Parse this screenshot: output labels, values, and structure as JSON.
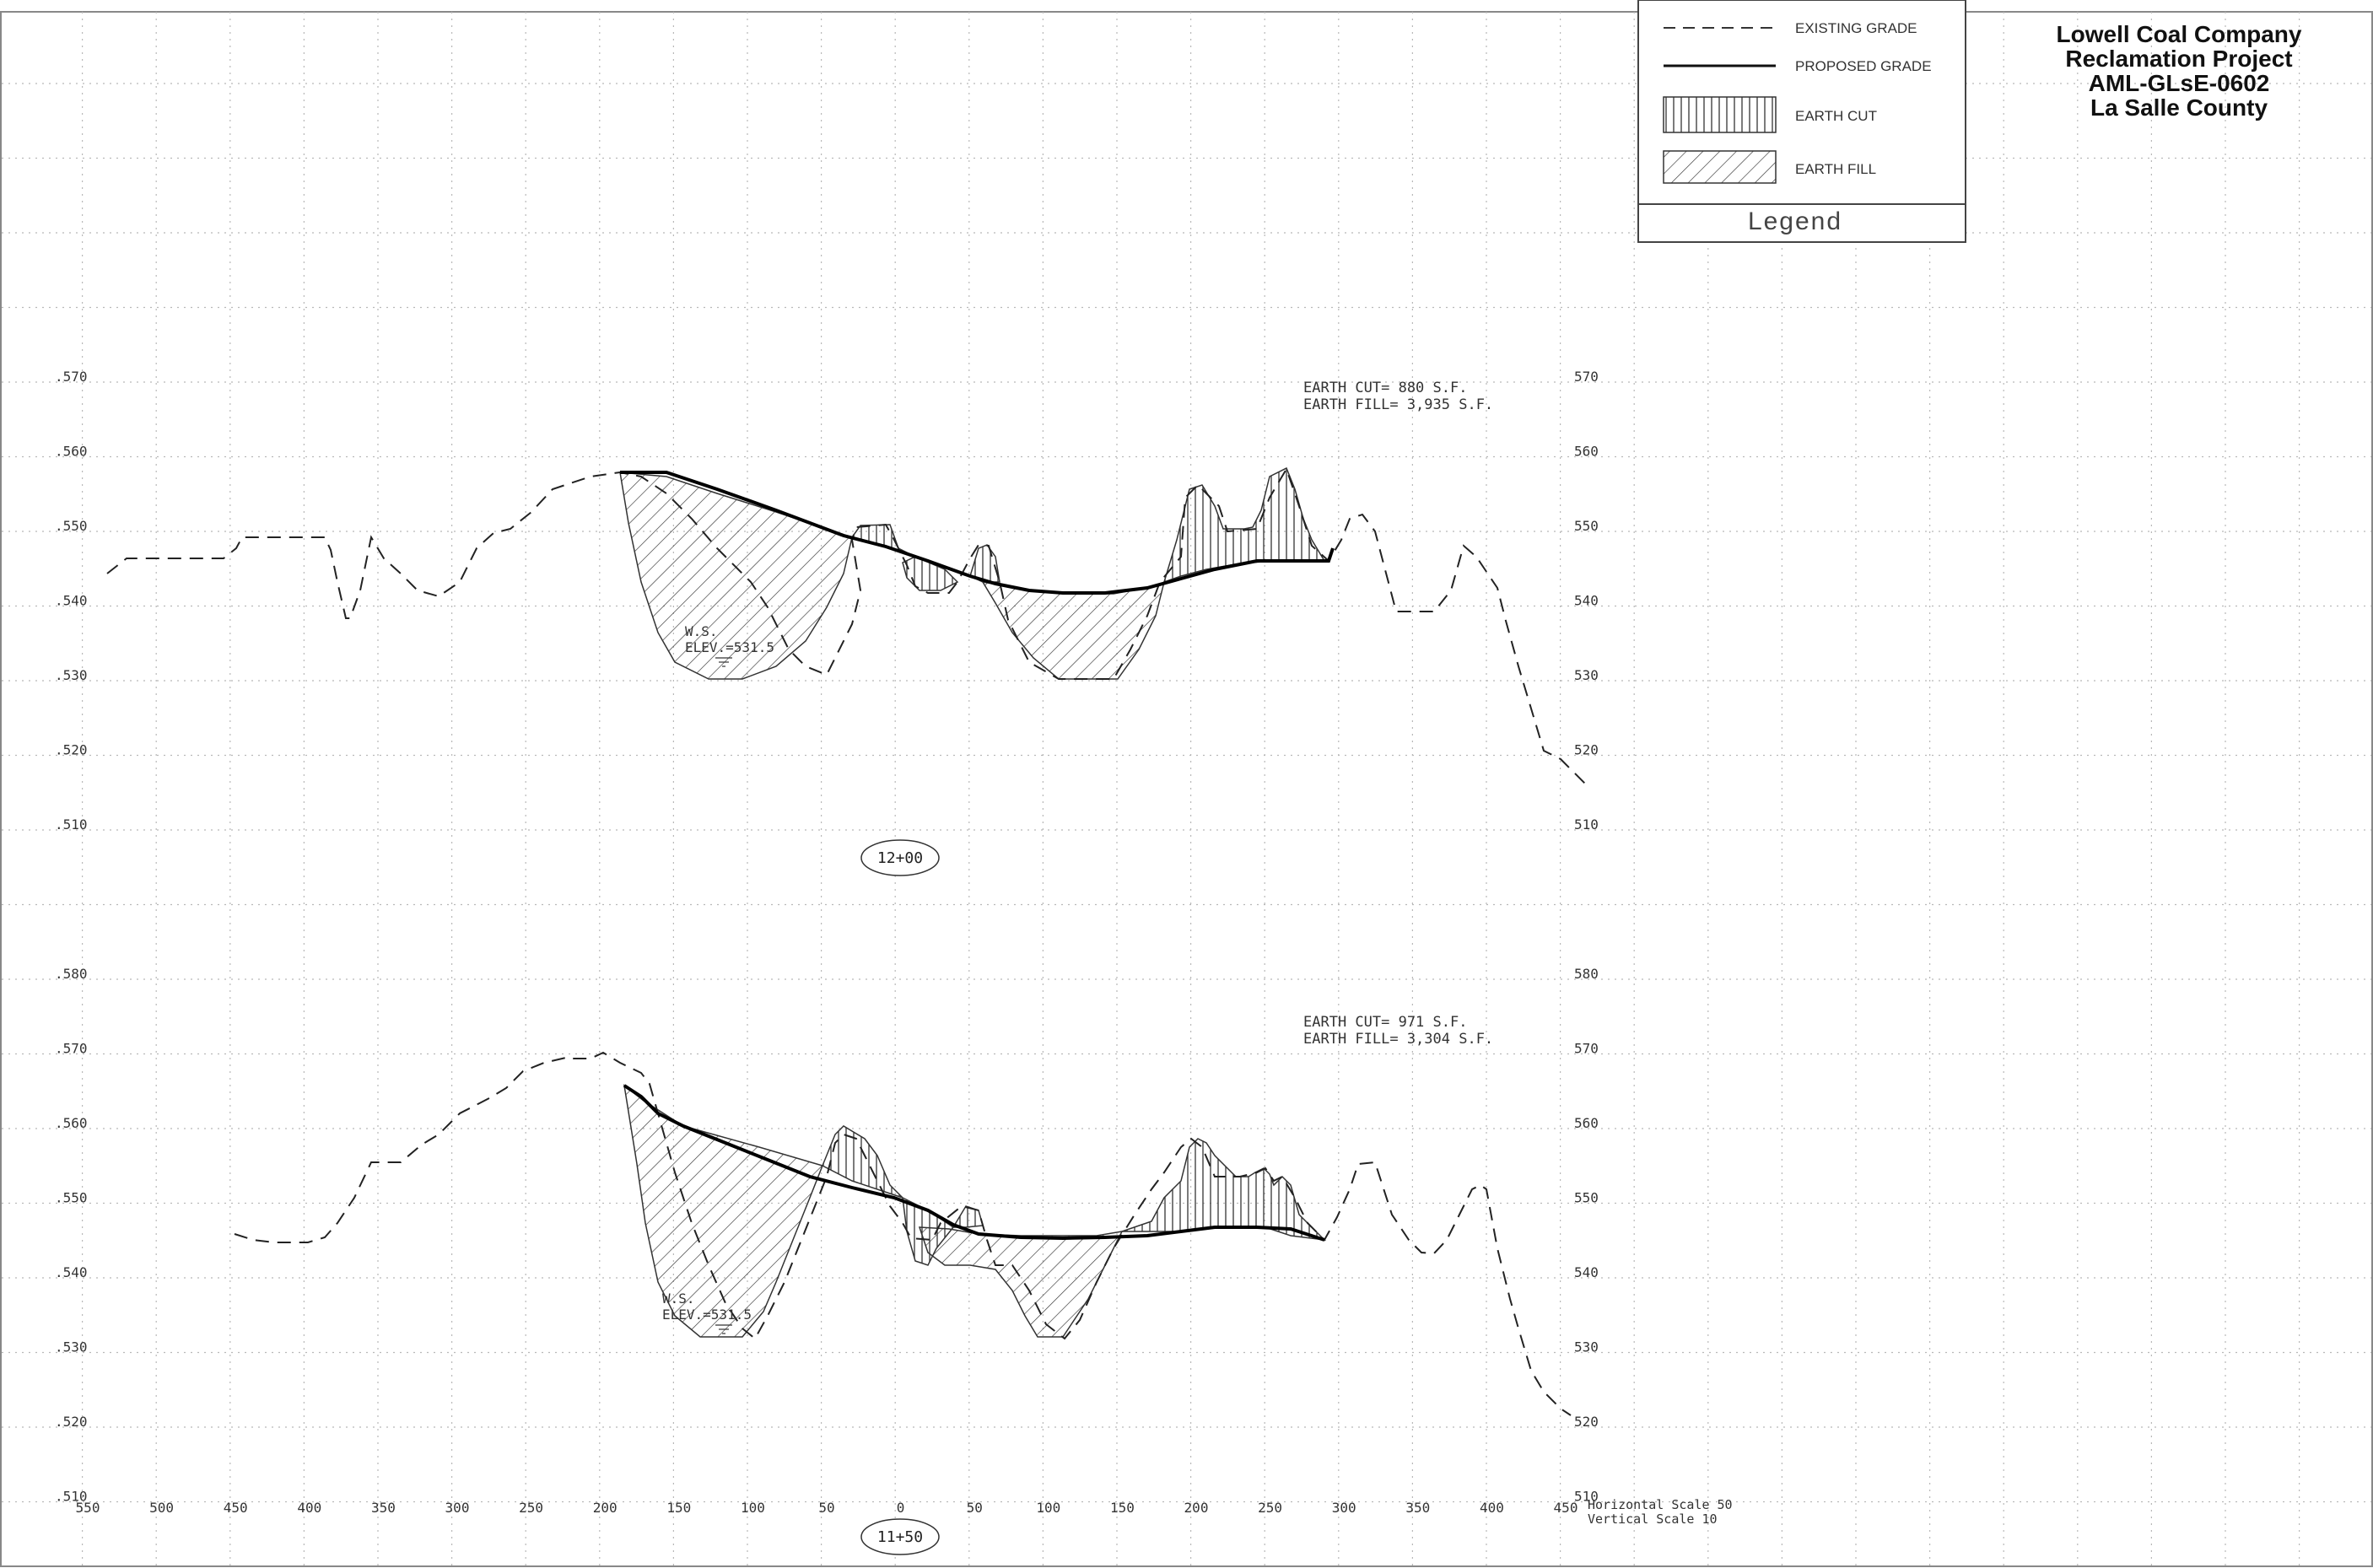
{
  "title_block": {
    "lines": [
      "Lowell Coal Company",
      "Reclamation Project",
      "AML-GLsE-0602",
      "La Salle County"
    ]
  },
  "legend": {
    "title": "Legend",
    "items": [
      {
        "key": "existing",
        "label": "EXISTING GRADE"
      },
      {
        "key": "proposed",
        "label": "PROPOSED GRADE"
      },
      {
        "key": "cut",
        "label": "EARTH CUT"
      },
      {
        "key": "fill",
        "label": "EARTH FILL"
      }
    ]
  },
  "x_ticks": [
    "550",
    "500",
    "450",
    "400",
    "350",
    "300",
    "250",
    "200",
    "150",
    "100",
    "50",
    "0",
    "50",
    "100",
    "150",
    "200",
    "250",
    "300",
    "350",
    "400",
    "450"
  ],
  "scale_note": {
    "horizontal": "Horizontal Scale 50",
    "vertical": "Vertical Scale 10"
  },
  "sections": [
    {
      "station": "12+00",
      "earth_cut": "EARTH CUT= 880 S.F.",
      "earth_fill": "EARTH FILL= 3,935 S.F.",
      "ws_label": "W.S.",
      "ws_elev": "ELEV.=531.5",
      "y_ticks": [
        "570",
        "560",
        "550",
        "540",
        "530",
        "520",
        "510"
      ]
    },
    {
      "station": "11+50",
      "earth_cut": "EARTH CUT= 971 S.F.",
      "earth_fill": "EARTH FILL= 3,304 S.F.",
      "ws_label": "W.S.",
      "ws_elev": "ELEV.=531.5",
      "y_ticks": [
        "580",
        "570",
        "560",
        "550",
        "540",
        "530",
        "520",
        "510"
      ]
    }
  ]
}
